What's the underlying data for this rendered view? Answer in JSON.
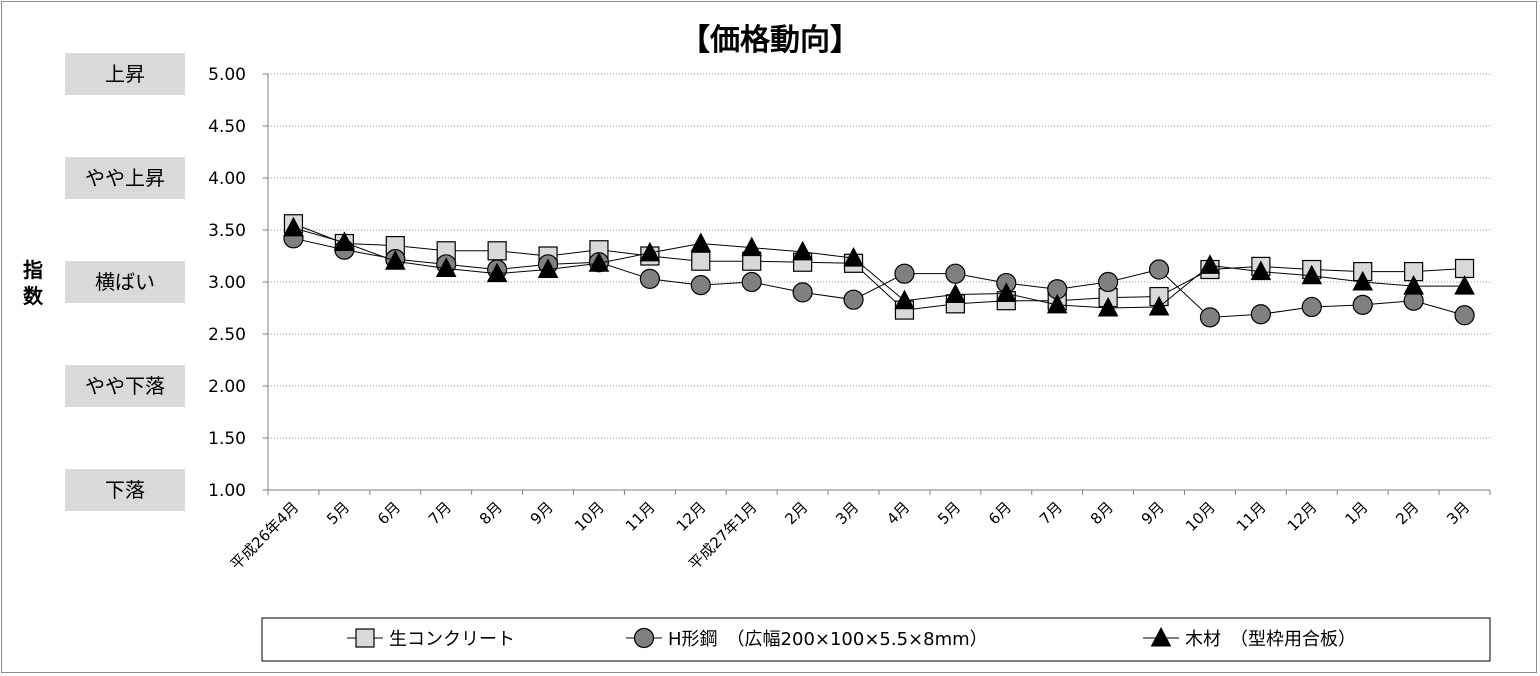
{
  "chart_data": {
    "type": "line",
    "title": "【価格動向】",
    "ylabel": "指数",
    "ylim": [
      1.0,
      5.0
    ],
    "yticks": [
      "1.00",
      "1.50",
      "2.00",
      "2.50",
      "3.00",
      "3.50",
      "4.00",
      "4.50",
      "5.00"
    ],
    "grid": true,
    "legend_position": "bottom",
    "level_labels": [
      {
        "label": "上昇",
        "value": 5.0
      },
      {
        "label": "やや上昇",
        "value": 4.0
      },
      {
        "label": "横ばい",
        "value": 3.0
      },
      {
        "label": "やや下落",
        "value": 2.0
      },
      {
        "label": "下落",
        "value": 1.0
      }
    ],
    "categories": [
      "平成26年4月",
      "5月",
      "6月",
      "7月",
      "8月",
      "9月",
      "10月",
      "11月",
      "12月",
      "平成27年1月",
      "2月",
      "3月",
      "4月",
      "5月",
      "6月",
      "7月",
      "8月",
      "9月",
      "10月",
      "11月",
      "12月",
      "1月",
      "2月",
      "3月"
    ],
    "series": [
      {
        "name": "生コンクリート",
        "marker": "square",
        "color": "#d9d9d9",
        "values": [
          3.56,
          3.37,
          3.35,
          3.3,
          3.3,
          3.25,
          3.31,
          3.25,
          3.2,
          3.2,
          3.19,
          3.18,
          2.73,
          2.79,
          2.82,
          2.82,
          2.85,
          2.86,
          3.12,
          3.15,
          3.12,
          3.1,
          3.1,
          3.13
        ]
      },
      {
        "name": "H形鋼　（広幅200×100×5.5×8mm）",
        "marker": "circle",
        "color": "#808080",
        "values": [
          3.42,
          3.31,
          3.22,
          3.17,
          3.12,
          3.17,
          3.19,
          3.03,
          2.97,
          3.0,
          2.9,
          2.83,
          3.08,
          3.08,
          2.99,
          2.93,
          3.0,
          3.12,
          2.66,
          2.69,
          2.76,
          2.78,
          2.82,
          2.68
        ]
      },
      {
        "name": "木材　（型枠用合板）",
        "marker": "triangle",
        "color": "#000000",
        "values": [
          3.52,
          3.38,
          3.2,
          3.13,
          3.08,
          3.12,
          3.18,
          3.28,
          3.37,
          3.33,
          3.29,
          3.23,
          2.82,
          2.88,
          2.89,
          2.78,
          2.75,
          2.76,
          3.16,
          3.1,
          3.06,
          3.0,
          2.96,
          2.96
        ]
      }
    ]
  }
}
